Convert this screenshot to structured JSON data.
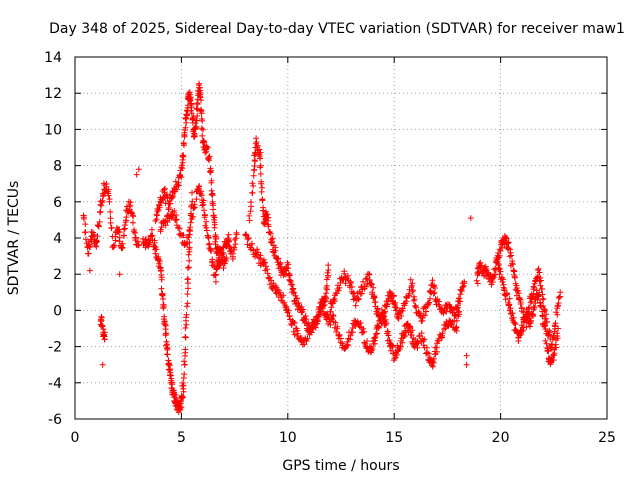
{
  "chart_data": {
    "type": "scatter",
    "title": "Day 348 of 2025, Sidereal Day-to-day VTEC variation (SDTVAR) for receiver maw1",
    "xlabel": "GPS time / hours",
    "ylabel": "SDTVAR / TECUs",
    "xlim": [
      0,
      25
    ],
    "ylim": [
      -6,
      14
    ],
    "xticks": [
      0,
      5,
      10,
      15,
      20,
      25
    ],
    "yticks": [
      -6,
      -4,
      -2,
      0,
      2,
      4,
      6,
      8,
      10,
      12,
      14
    ],
    "xtick_labels": [
      "0",
      "5",
      "10",
      "15",
      "20",
      "25"
    ],
    "ytick_labels": [
      "-6",
      "-4",
      "-2",
      "0",
      "2",
      "4",
      "6",
      "8",
      "10",
      "12",
      "14"
    ],
    "grid": true,
    "marker": "+",
    "color": "#ff0000",
    "series": [
      {
        "name": "SDTVAR",
        "segments": [
          [
            [
              0.4,
              5.5
            ],
            [
              0.6,
              3.2
            ],
            [
              0.8,
              4.2
            ],
            [
              1.0,
              3.5
            ],
            [
              1.2,
              5.8
            ],
            [
              1.4,
              7.0
            ],
            [
              1.6,
              6.5
            ],
            [
              1.8,
              3.5
            ],
            [
              2.0,
              4.6
            ],
            [
              2.2,
              3.2
            ],
            [
              2.4,
              5.2
            ],
            [
              2.6,
              6.0
            ],
            [
              2.8,
              4.2
            ],
            [
              3.0,
              3.6
            ]
          ],
          [
            [
              1.2,
              -0.5
            ],
            [
              1.3,
              -1.0
            ],
            [
              1.4,
              -1.6
            ]
          ],
          [
            [
              3.2,
              4.0
            ],
            [
              3.4,
              3.5
            ],
            [
              3.6,
              4.2
            ],
            [
              3.8,
              3.2
            ],
            [
              4.0,
              2.5
            ],
            [
              4.1,
              1.0
            ],
            [
              4.2,
              -0.5
            ],
            [
              4.3,
              -1.8
            ],
            [
              4.4,
              -3.0
            ],
            [
              4.5,
              -3.8
            ],
            [
              4.6,
              -4.5
            ],
            [
              4.7,
              -5.0
            ],
            [
              4.8,
              -5.2
            ],
            [
              4.9,
              -5.4
            ],
            [
              5.0,
              -5.1
            ],
            [
              5.1,
              -4.0
            ],
            [
              5.2,
              -1.5
            ],
            [
              5.3,
              1.5
            ],
            [
              5.4,
              4.0
            ],
            [
              5.5,
              6.5
            ]
          ],
          [
            [
              3.8,
              5.2
            ],
            [
              4.0,
              6.0
            ],
            [
              4.2,
              6.5
            ],
            [
              4.4,
              5.8
            ],
            [
              4.6,
              6.4
            ],
            [
              4.8,
              7.0
            ],
            [
              5.0,
              7.5
            ],
            [
              5.1,
              9.0
            ],
            [
              5.2,
              10.5
            ],
            [
              5.3,
              11.5
            ],
            [
              5.4,
              12.0
            ],
            [
              5.5,
              11.0
            ],
            [
              5.6,
              9.5
            ],
            [
              5.7,
              10.5
            ],
            [
              5.8,
              12.3
            ],
            [
              5.9,
              11.8
            ],
            [
              6.0,
              9.5
            ],
            [
              6.1,
              8.8
            ],
            [
              6.2,
              9.0
            ],
            [
              6.4,
              7.5
            ],
            [
              6.5,
              5.5
            ],
            [
              6.6,
              4.0
            ],
            [
              6.7,
              3.2
            ],
            [
              6.8,
              2.5
            ],
            [
              7.0,
              3.5
            ],
            [
              7.2,
              4.0
            ],
            [
              7.4,
              3.0
            ],
            [
              7.6,
              4.2
            ]
          ],
          [
            [
              4.0,
              4.5
            ],
            [
              4.3,
              5.0
            ],
            [
              4.6,
              5.5
            ],
            [
              4.9,
              4.5
            ],
            [
              5.2,
              3.5
            ],
            [
              5.5,
              5.0
            ],
            [
              5.8,
              7.0
            ],
            [
              6.0,
              6.0
            ],
            [
              6.2,
              4.5
            ],
            [
              6.4,
              3.0
            ],
            [
              6.6,
              1.8
            ],
            [
              6.8,
              3.5
            ],
            [
              7.0,
              2.5
            ],
            [
              7.2,
              3.8
            ]
          ],
          [
            [
              8.2,
              5.0
            ],
            [
              8.4,
              7.5
            ],
            [
              8.5,
              9.3
            ],
            [
              8.7,
              8.5
            ],
            [
              8.8,
              6.0
            ],
            [
              8.9,
              4.8
            ],
            [
              9.0,
              5.5
            ],
            [
              9.2,
              4.0
            ],
            [
              9.4,
              3.2
            ],
            [
              9.6,
              2.5
            ],
            [
              9.8,
              2.0
            ],
            [
              10.0,
              2.5
            ],
            [
              10.2,
              1.2
            ],
            [
              10.4,
              0.5
            ],
            [
              10.6,
              0.0
            ],
            [
              10.8,
              -0.5
            ],
            [
              11.0,
              -1.0
            ],
            [
              11.2,
              -0.8
            ],
            [
              11.4,
              -0.5
            ],
            [
              11.6,
              0.5
            ],
            [
              11.8,
              -0.2
            ],
            [
              12.0,
              -0.8
            ]
          ],
          [
            [
              8.0,
              4.0
            ],
            [
              8.3,
              3.5
            ],
            [
              8.6,
              3.0
            ],
            [
              8.9,
              2.5
            ],
            [
              9.2,
              1.5
            ],
            [
              9.5,
              1.0
            ],
            [
              9.8,
              0.5
            ],
            [
              10.1,
              -0.5
            ],
            [
              10.4,
              -1.2
            ],
            [
              10.7,
              -1.8
            ],
            [
              11.0,
              -1.2
            ],
            [
              11.3,
              -0.5
            ],
            [
              11.6,
              0.0
            ],
            [
              11.8,
              0.8
            ],
            [
              11.9,
              2.5
            ]
          ],
          [
            [
              12.0,
              -0.2
            ],
            [
              12.3,
              -1.0
            ],
            [
              12.6,
              -2.0
            ],
            [
              12.9,
              -1.5
            ],
            [
              13.2,
              -0.5
            ],
            [
              13.5,
              -1.2
            ],
            [
              13.8,
              -2.2
            ],
            [
              14.0,
              -2.0
            ],
            [
              14.2,
              -1.0
            ],
            [
              14.4,
              -0.2
            ],
            [
              14.6,
              -0.8
            ],
            [
              14.8,
              -1.8
            ],
            [
              15.0,
              -2.5
            ],
            [
              15.2,
              -2.0
            ],
            [
              15.4,
              -1.5
            ],
            [
              15.6,
              -0.8
            ],
            [
              15.8,
              -1.2
            ],
            [
              16.0,
              -2.0
            ],
            [
              16.3,
              -1.5
            ],
            [
              16.6,
              -2.5
            ],
            [
              16.8,
              -3.0
            ],
            [
              17.0,
              -2.0
            ],
            [
              17.3,
              -1.2
            ],
            [
              17.6,
              -0.5
            ],
            [
              17.9,
              -1.0
            ],
            [
              18.1,
              0.5
            ]
          ],
          [
            [
              12.0,
              0.3
            ],
            [
              12.3,
              1.0
            ],
            [
              12.6,
              2.0
            ],
            [
              12.9,
              1.5
            ],
            [
              13.2,
              0.5
            ],
            [
              13.5,
              1.2
            ],
            [
              13.8,
              1.8
            ],
            [
              14.0,
              1.0
            ],
            [
              14.2,
              0.0
            ],
            [
              14.4,
              -0.8
            ],
            [
              14.6,
              0.2
            ],
            [
              14.8,
              0.8
            ],
            [
              15.0,
              0.5
            ],
            [
              15.2,
              -0.5
            ],
            [
              15.5,
              0.5
            ],
            [
              15.8,
              1.5
            ],
            [
              16.0,
              0.0
            ],
            [
              16.3,
              -0.5
            ],
            [
              16.6,
              0.5
            ],
            [
              16.8,
              1.5
            ],
            [
              17.0,
              0.5
            ],
            [
              17.3,
              0.0
            ],
            [
              17.6,
              0.2
            ],
            [
              17.9,
              -0.2
            ],
            [
              18.1,
              1.0
            ],
            [
              18.3,
              1.5
            ]
          ],
          [
            [
              18.9,
              1.5
            ],
            [
              19.0,
              2.5
            ],
            [
              19.2,
              2.2
            ],
            [
              19.4,
              2.0
            ],
            [
              19.6,
              1.5
            ],
            [
              19.8,
              2.5
            ],
            [
              20.0,
              3.5
            ],
            [
              20.2,
              4.0
            ],
            [
              20.4,
              3.5
            ],
            [
              20.6,
              2.0
            ],
            [
              20.8,
              1.0
            ],
            [
              21.0,
              0.0
            ],
            [
              21.2,
              -0.8
            ],
            [
              21.4,
              0.5
            ],
            [
              21.6,
              1.5
            ],
            [
              21.8,
              2.0
            ],
            [
              22.0,
              0.5
            ],
            [
              22.2,
              -1.0
            ],
            [
              22.4,
              -2.0
            ],
            [
              22.6,
              -0.5
            ],
            [
              22.8,
              1.0
            ]
          ],
          [
            [
              19.8,
              3.0
            ],
            [
              20.0,
              2.0
            ],
            [
              20.2,
              1.0
            ],
            [
              20.4,
              0.5
            ],
            [
              20.6,
              -0.5
            ],
            [
              20.8,
              -1.5
            ],
            [
              21.0,
              -1.0
            ],
            [
              21.2,
              -0.2
            ],
            [
              21.4,
              -0.8
            ],
            [
              21.6,
              0.5
            ],
            [
              21.8,
              1.0
            ],
            [
              22.0,
              -0.5
            ],
            [
              22.2,
              -2.0
            ],
            [
              22.3,
              -3.0
            ],
            [
              22.5,
              -2.5
            ],
            [
              22.7,
              -1.0
            ]
          ]
        ],
        "points": [
          [
            1.3,
            -3.0
          ],
          [
            1.4,
            6.5
          ],
          [
            2.9,
            7.5
          ],
          [
            2.1,
            2.0
          ],
          [
            18.4,
            -3.0
          ],
          [
            18.6,
            5.1
          ],
          [
            18.4,
            -2.5
          ],
          [
            0.7,
            2.2
          ],
          [
            3.0,
            7.8
          ]
        ]
      }
    ]
  }
}
